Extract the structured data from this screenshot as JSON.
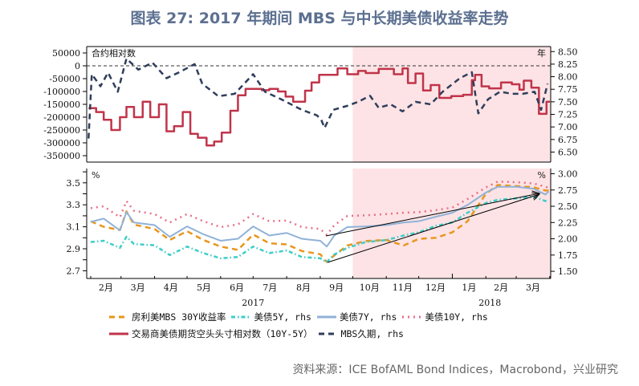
{
  "title": "图表 27: 2017 年期间 MBS 与中长期美债收益率走势",
  "source": "资料来源：ICE BofAML Bond Indices，Macrobond，兴业研究",
  "chart_data": [
    {
      "type": "line",
      "panel": "top",
      "left_unit_label": "合约相对数",
      "right_unit_label": "年",
      "left_ylim": [
        -375000,
        75000
      ],
      "right_ylim": [
        6.3,
        8.6
      ],
      "left_ticks": [
        "50000",
        "0",
        "-50000",
        "-100000",
        "-150000",
        "-200000",
        "-250000",
        "-300000",
        "-350000"
      ],
      "right_ticks": [
        "8.50",
        "8.25",
        "8.00",
        "7.75",
        "7.50",
        "7.25",
        "7.00",
        "6.75",
        "6.50"
      ],
      "reference_line": 0,
      "shaded_from": "2017-10-01",
      "shade_color": "#fde3e5",
      "series": [
        {
          "name": "交易商美债期货空头头寸相对数（10Y-5Y）",
          "axis": "left",
          "style": "step",
          "color": "#c0344a",
          "x": [
            "2017-01-30",
            "2017-02-06",
            "2017-02-13",
            "2017-02-20",
            "2017-02-28",
            "2017-03-06",
            "2017-03-13",
            "2017-03-21",
            "2017-03-28",
            "2017-04-05",
            "2017-04-12",
            "2017-04-19",
            "2017-04-27",
            "2017-05-04",
            "2017-05-11",
            "2017-05-19",
            "2017-05-26",
            "2017-06-02",
            "2017-06-10",
            "2017-06-17",
            "2017-06-24",
            "2017-07-09",
            "2017-07-16",
            "2017-07-24",
            "2017-07-31",
            "2017-08-07",
            "2017-08-18",
            "2017-08-24",
            "2017-08-31",
            "2017-09-17",
            "2017-09-26",
            "2017-10-06",
            "2017-10-13",
            "2017-10-25",
            "2017-11-08",
            "2017-11-16",
            "2017-11-21",
            "2017-11-28",
            "2017-12-05",
            "2017-12-12",
            "2017-12-20",
            "2017-12-31",
            "2018-01-11",
            "2018-01-19",
            "2018-01-22",
            "2018-01-28",
            "2018-02-04",
            "2018-02-15",
            "2018-02-25",
            "2018-03-04",
            "2018-03-08",
            "2018-03-15",
            "2018-03-22",
            "2018-03-29"
          ],
          "values": [
            -165000,
            -180000,
            -210000,
            -250000,
            -200000,
            -160000,
            -200000,
            -140000,
            -200000,
            -150000,
            -255000,
            -235000,
            -180000,
            -265000,
            -280000,
            -310000,
            -295000,
            -260000,
            -175000,
            -115000,
            -90000,
            -95000,
            -90000,
            -100000,
            -120000,
            -140000,
            -97000,
            -65000,
            -35000,
            -10000,
            -33000,
            -20000,
            -28000,
            -12000,
            -33000,
            -10000,
            -67000,
            -30000,
            -96000,
            -75000,
            -125000,
            -118000,
            -113000,
            -56000,
            -35000,
            -80000,
            -88000,
            -65000,
            -72000,
            -93000,
            -58000,
            -85000,
            -187000,
            -140000
          ]
        },
        {
          "name": "MBS久期, rhs",
          "axis": "right",
          "style": "dashed",
          "color": "#2f3e5c",
          "x": [
            "2017-01-30",
            "2017-02-02",
            "2017-02-10",
            "2017-02-17",
            "2017-02-26",
            "2017-03-06",
            "2017-03-17",
            "2017-03-30",
            "2017-04-12",
            "2017-04-23",
            "2017-05-08",
            "2017-05-15",
            "2017-05-30",
            "2017-06-14",
            "2017-07-01",
            "2017-07-12",
            "2017-07-27",
            "2017-08-15",
            "2017-08-29",
            "2017-09-02",
            "2017-09-05",
            "2017-09-13",
            "2017-09-26",
            "2017-10-06",
            "2017-10-17",
            "2017-10-25",
            "2017-11-05",
            "2017-11-16",
            "2017-11-28",
            "2017-12-12",
            "2017-12-23",
            "2018-01-08",
            "2018-01-19",
            "2018-01-25",
            "2018-02-03",
            "2018-02-14",
            "2018-02-25",
            "2018-03-07",
            "2018-03-18",
            "2018-03-24",
            "2018-03-30"
          ],
          "values": [
            6.77,
            8.05,
            7.81,
            8.08,
            7.7,
            8.36,
            8.14,
            8.28,
            7.97,
            8.08,
            8.25,
            7.86,
            7.61,
            7.66,
            8.05,
            7.7,
            7.55,
            7.34,
            7.23,
            7.14,
            6.98,
            7.34,
            7.42,
            7.5,
            7.62,
            7.38,
            7.45,
            7.31,
            7.5,
            7.45,
            7.7,
            7.97,
            8.09,
            7.27,
            7.55,
            7.7,
            7.66,
            7.66,
            7.7,
            7.34,
            7.86
          ]
        }
      ]
    },
    {
      "type": "line",
      "panel": "bottom",
      "left_unit_label": "%",
      "right_unit_label": "%",
      "left_ylim": [
        2.63,
        3.63
      ],
      "right_ylim": [
        1.39,
        3.08
      ],
      "left_ticks": [
        "3.5",
        "3.3",
        "3.1",
        "2.9",
        "2.7"
      ],
      "right_ticks": [
        "3.00",
        "2.75",
        "2.50",
        "2.25",
        "2.00",
        "1.75",
        "1.50"
      ],
      "shaded_from": "2017-10-01",
      "x_tick_labels": [
        "2月",
        "3月",
        "4月",
        "5月",
        "6月",
        "7月",
        "8月",
        "9月",
        "10月",
        "11月",
        "12月",
        "1月",
        "2月",
        "3月"
      ],
      "year_labels": [
        "2017",
        "2018"
      ],
      "x": [
        "2017-02-01",
        "2017-02-13",
        "2017-02-28",
        "2017-03-06",
        "2017-03-13",
        "2017-04-01",
        "2017-04-15",
        "2017-05-01",
        "2017-05-16",
        "2017-06-01",
        "2017-06-17",
        "2017-07-01",
        "2017-07-16",
        "2017-08-01",
        "2017-08-15",
        "2017-09-01",
        "2017-09-07",
        "2017-09-14",
        "2017-09-26",
        "2017-10-13",
        "2017-11-01",
        "2017-11-17",
        "2017-12-01",
        "2017-12-17",
        "2018-01-01",
        "2018-01-15",
        "2018-02-01",
        "2018-02-12",
        "2018-03-01",
        "2018-03-17",
        "2018-03-28",
        "2018-03-31"
      ],
      "series": [
        {
          "name": "房利美MBS 30Y收益率",
          "axis": "left",
          "style": "dashed",
          "color": "#e8961e",
          "values": [
            3.15,
            3.1,
            3.07,
            3.24,
            3.12,
            3.08,
            2.98,
            3.06,
            2.98,
            2.92,
            2.89,
            3.03,
            2.95,
            2.94,
            2.88,
            2.85,
            2.78,
            2.84,
            2.93,
            2.97,
            2.98,
            2.93,
            2.99,
            3.0,
            3.05,
            3.15,
            3.4,
            3.48,
            3.47,
            3.46,
            3.43,
            3.43
          ]
        },
        {
          "name": "美债5Y, rhs",
          "axis": "right",
          "style": "dashdot",
          "color": "#3ecdc8",
          "values": [
            1.95,
            1.97,
            1.86,
            2.03,
            1.92,
            1.9,
            1.75,
            1.88,
            1.78,
            1.7,
            1.72,
            1.88,
            1.78,
            1.82,
            1.72,
            1.7,
            1.64,
            1.76,
            1.86,
            1.95,
            1.98,
            2.05,
            2.1,
            2.2,
            2.25,
            2.4,
            2.55,
            2.6,
            2.62,
            2.65,
            2.58,
            2.6
          ]
        },
        {
          "name": "美债7Y, rhs",
          "axis": "right",
          "style": "solid",
          "color": "#90b2d8",
          "values": [
            2.26,
            2.31,
            2.13,
            2.41,
            2.25,
            2.21,
            2.03,
            2.19,
            2.07,
            1.97,
            2.0,
            2.19,
            2.05,
            2.09,
            2.0,
            1.97,
            1.88,
            2.05,
            2.18,
            2.19,
            2.21,
            2.25,
            2.27,
            2.34,
            2.4,
            2.52,
            2.71,
            2.8,
            2.8,
            2.77,
            2.68,
            2.73
          ]
        },
        {
          "name": "美债10Y, rhs",
          "axis": "right",
          "style": "dotted",
          "color": "#e8708a",
          "values": [
            2.47,
            2.5,
            2.33,
            2.58,
            2.43,
            2.38,
            2.25,
            2.38,
            2.27,
            2.18,
            2.22,
            2.38,
            2.27,
            2.28,
            2.18,
            2.15,
            2.06,
            2.21,
            2.35,
            2.36,
            2.38,
            2.4,
            2.41,
            2.44,
            2.48,
            2.61,
            2.79,
            2.88,
            2.87,
            2.85,
            2.8,
            2.78
          ]
        }
      ]
    }
  ],
  "legend": [
    [
      "房利美MBS 30Y收益率",
      "美债5Y, rhs",
      "美债7Y, rhs",
      "美债10Y, rhs"
    ],
    [
      "交易商美债期货空头头寸相对数（10Y-5Y）",
      "MBS久期, rhs"
    ]
  ]
}
